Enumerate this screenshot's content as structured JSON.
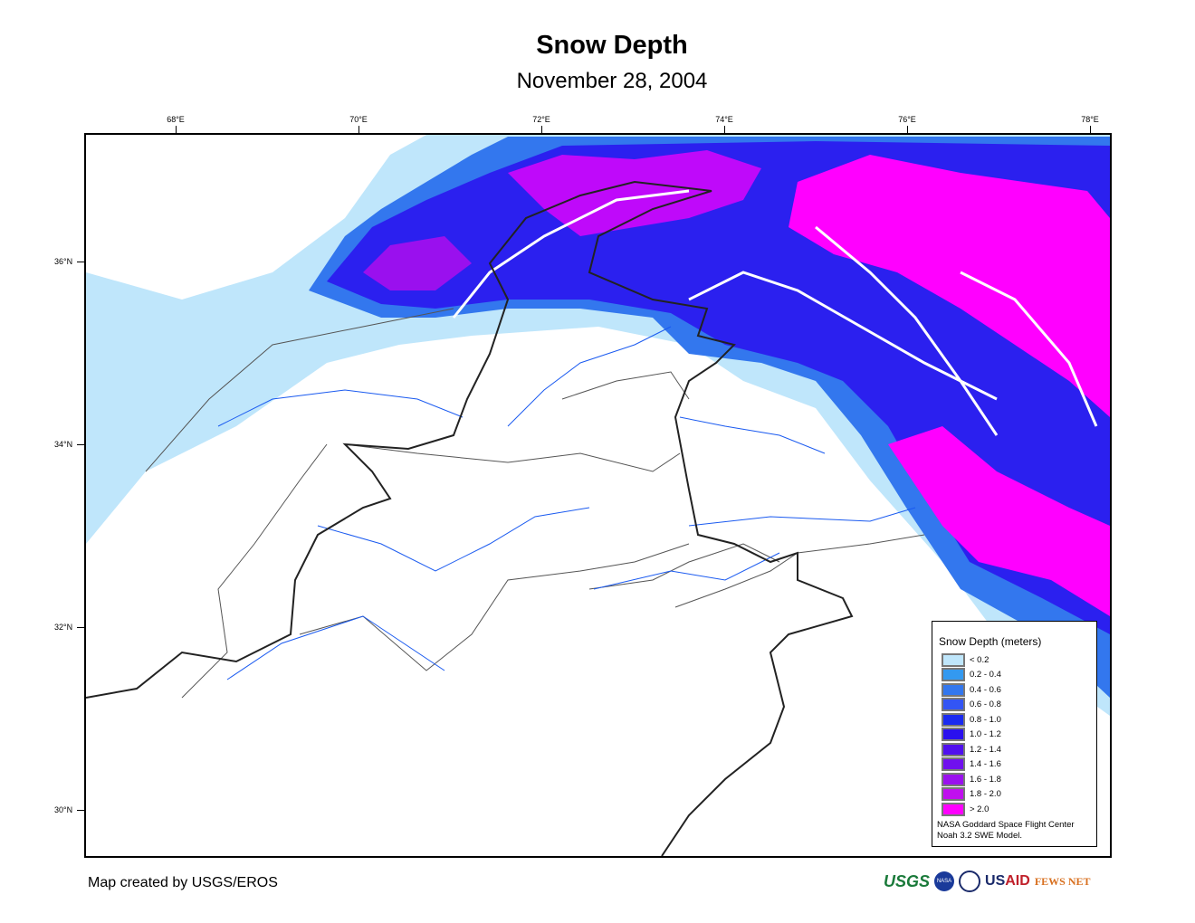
{
  "title": "Snow Depth",
  "subtitle": "November 28, 2004",
  "map": {
    "lon_ticks": [
      "68°E",
      "70°E",
      "72°E",
      "74°E",
      "76°E",
      "78°E"
    ],
    "lat_ticks": [
      "36°N",
      "34°N",
      "32°N",
      "30°N"
    ]
  },
  "legend": {
    "title": "Snow Depth (meters)",
    "classes": [
      {
        "label": "< 0.2",
        "color": "#bfe6fb"
      },
      {
        "label": "0.2 - 0.4",
        "color": "#3399f0"
      },
      {
        "label": "0.4 - 0.6",
        "color": "#3377ee"
      },
      {
        "label": "0.6 - 0.8",
        "color": "#3355f5"
      },
      {
        "label": "0.8 - 1.0",
        "color": "#1a2af0"
      },
      {
        "label": "1.0 - 1.2",
        "color": "#2a10ee"
      },
      {
        "label": "1.2 - 1.4",
        "color": "#5010ee"
      },
      {
        "label": "1.4 - 1.6",
        "color": "#7010ee"
      },
      {
        "label": "1.6 - 1.8",
        "color": "#9a10ee"
      },
      {
        "label": "1.8 - 2.0",
        "color": "#c010ee"
      },
      {
        "label": "> 2.0",
        "color": "#ff00ff"
      }
    ],
    "source_line1": "NASA Goddard Space Flight Center",
    "source_line2": "Noah 3.2 SWE Model."
  },
  "credit": "Map created by USGS/EROS",
  "logos": {
    "usgs": "USGS",
    "nasa": "NASA",
    "usaid_a": "US",
    "usaid_b": "AID",
    "fews": "FEWS NET"
  }
}
